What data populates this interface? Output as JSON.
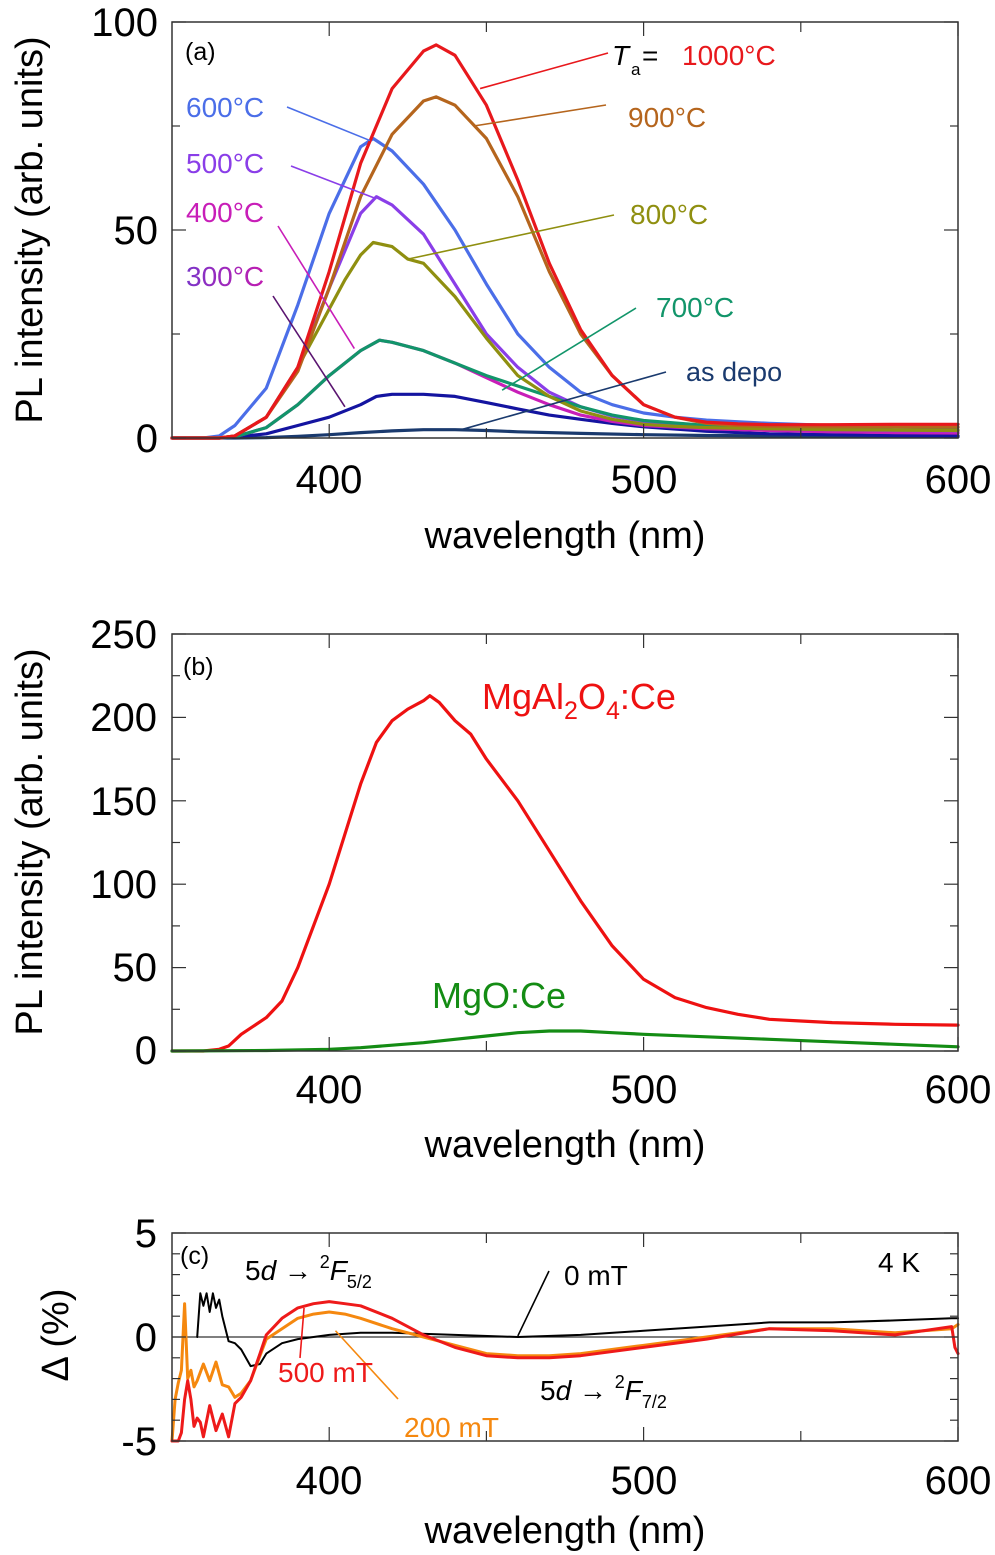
{
  "chart_data": [
    {
      "panel": "(a)",
      "type": "line",
      "xlabel": "wavelength (nm)",
      "ylabel": "PL intensity (arb. units)",
      "xlim": [
        350,
        600
      ],
      "ylim": [
        0,
        100
      ],
      "xticks": [
        400,
        500,
        600
      ],
      "yticks": [
        0,
        50,
        100
      ],
      "grid": false,
      "legend_title_prefix": "T",
      "legend_title_sub": "a",
      "legend_title_eq": " =",
      "series": [
        {
          "name": "1000°C",
          "color": "#e8181c",
          "x": [
            350,
            365,
            370,
            380,
            390,
            400,
            410,
            420,
            430,
            434,
            440,
            445,
            450,
            460,
            470,
            480,
            490,
            500,
            510,
            520,
            530,
            540,
            560,
            580,
            600
          ],
          "y": [
            0,
            0,
            0.5,
            5,
            17,
            40,
            66,
            84,
            93,
            94.5,
            92,
            86,
            80,
            62,
            42,
            26,
            15,
            8,
            5,
            3.8,
            3.4,
            3.2,
            3.2,
            3.3,
            3.3
          ]
        },
        {
          "name": "900°C",
          "color": "#b5651d",
          "x": [
            350,
            365,
            370,
            380,
            390,
            400,
            410,
            420,
            430,
            434,
            440,
            445,
            450,
            460,
            470,
            480,
            490,
            500,
            510,
            520,
            530,
            540,
            560,
            580,
            600
          ],
          "y": [
            0,
            0,
            0.5,
            5,
            16,
            36,
            58,
            73,
            81,
            82,
            80,
            76,
            72,
            58,
            40,
            25,
            15,
            8,
            5,
            3.5,
            3,
            2.8,
            2.7,
            2.7,
            2.6
          ]
        },
        {
          "name": "800°C",
          "color": "#8f8f10",
          "x": [
            350,
            365,
            370,
            380,
            390,
            400,
            405,
            410,
            414,
            420,
            425,
            430,
            440,
            450,
            460,
            470,
            480,
            490,
            500,
            510,
            520,
            540,
            560,
            580,
            600
          ],
          "y": [
            0,
            0,
            0.5,
            5,
            17,
            31,
            38,
            44,
            47,
            46,
            43,
            42,
            34,
            24,
            15,
            10,
            6.5,
            4.5,
            3.3,
            2.8,
            2.5,
            2.2,
            2,
            1.9,
            1.8
          ]
        },
        {
          "name": "700°C",
          "color": "#12956a",
          "x": [
            350,
            365,
            370,
            380,
            390,
            400,
            410,
            416,
            420,
            430,
            440,
            450,
            460,
            470,
            480,
            490,
            500,
            520,
            540,
            560,
            580,
            600
          ],
          "y": [
            0,
            0,
            0.3,
            2.5,
            8,
            15,
            21,
            23.5,
            23,
            21,
            18,
            15,
            12.5,
            10,
            7.5,
            5.5,
            4.2,
            3,
            2.5,
            2.2,
            2,
            1.9
          ]
        },
        {
          "name": "600°C",
          "color": "#4b6ee8",
          "x": [
            350,
            360,
            365,
            370,
            380,
            390,
            400,
            410,
            414,
            420,
            430,
            440,
            450,
            460,
            470,
            480,
            490,
            500,
            510,
            520,
            540,
            560,
            580,
            600
          ],
          "y": [
            0,
            0,
            0.5,
            3,
            12,
            32,
            54,
            70,
            72,
            69,
            61,
            50,
            37,
            25,
            17,
            11,
            8,
            6,
            5,
            4.3,
            3.5,
            3,
            2.8,
            2.6
          ]
        },
        {
          "name": "500°C",
          "color": "#8a3ee8",
          "x": [
            350,
            365,
            370,
            380,
            390,
            400,
            410,
            415,
            420,
            430,
            440,
            450,
            460,
            470,
            480,
            490,
            500,
            510,
            520,
            540,
            560,
            580,
            600
          ],
          "y": [
            0,
            0,
            0.5,
            5,
            17,
            36,
            54,
            58,
            56,
            49,
            37,
            25,
            17,
            11,
            7.5,
            5.3,
            4,
            3.3,
            2.8,
            2.3,
            2,
            1.8,
            1.7
          ]
        },
        {
          "name": "400°C",
          "color": "#c81eb8",
          "x": [
            350,
            365,
            370,
            380,
            390,
            400,
            410,
            416,
            420,
            430,
            440,
            450,
            460,
            470,
            480,
            490,
            500,
            520,
            540,
            560,
            580,
            600
          ],
          "y": [
            0,
            0,
            0.3,
            2.5,
            8,
            15,
            21,
            23.5,
            23,
            21,
            18,
            14.5,
            11,
            8,
            5.5,
            4,
            3,
            2.2,
            1.8,
            1.5,
            1.3,
            1.2
          ]
        },
        {
          "name": "300°C",
          "color": "#1414a0",
          "x": [
            350,
            365,
            370,
            380,
            390,
            400,
            410,
            415,
            420,
            430,
            440,
            450,
            460,
            470,
            480,
            490,
            500,
            520,
            540,
            560,
            580,
            600
          ],
          "y": [
            0,
            0,
            0.2,
            1,
            3,
            5,
            8,
            10,
            10.5,
            10.5,
            10,
            8.5,
            7,
            5.5,
            4.5,
            3.5,
            2.7,
            1.6,
            1,
            0.8,
            0.6,
            0.5
          ]
        },
        {
          "name": "as depo",
          "color": "#1a3a6e",
          "x": [
            350,
            370,
            380,
            390,
            400,
            410,
            420,
            430,
            440,
            450,
            460,
            480,
            500,
            520,
            540,
            560,
            580,
            600
          ],
          "y": [
            0,
            0,
            0.1,
            0.4,
            0.8,
            1.3,
            1.7,
            2,
            2,
            1.8,
            1.5,
            1.1,
            0.8,
            0.6,
            0.5,
            0.4,
            0.3,
            0.3
          ]
        }
      ],
      "annotations": [
        {
          "text": "600°C",
          "color": "#4b6ee8",
          "x": 350,
          "y": 78,
          "arrow_to": [
            413,
            71.5
          ]
        },
        {
          "text": "500°C",
          "color": "#8a3ee8",
          "x": 350,
          "y": 61,
          "arrow_to": [
            415,
            57.5
          ]
        },
        {
          "text": "400°C",
          "color": "#c81eb8",
          "x": 350,
          "y": 46,
          "arrow_to": [
            408,
            21.5
          ]
        },
        {
          "text": "300°C",
          "color": "#8a2cc0",
          "x": 350,
          "y": 28,
          "arrow_to": [
            405,
            7.5
          ]
        },
        {
          "text": "1000°C",
          "color": "#e8181c",
          "x": 485,
          "y": 94,
          "arrow_to": [
            448,
            84
          ]
        },
        {
          "text": "900°C",
          "color": "#b5651d",
          "x": 488,
          "y": 77,
          "arrow_to": [
            446,
            75
          ]
        },
        {
          "text": "800°C",
          "color": "#8f8f10",
          "x": 490,
          "y": 54,
          "arrow_to": [
            425,
            43
          ]
        },
        {
          "text": "700°C",
          "color": "#12956a",
          "x": 495,
          "y": 25,
          "arrow_to": [
            455,
            11.5
          ]
        },
        {
          "text": "as depo",
          "color": "#1a3a6e",
          "x": 508,
          "y": 15.5,
          "arrow_to": [
            442,
            2
          ]
        }
      ]
    },
    {
      "panel": "(b)",
      "type": "line",
      "xlabel": "wavelength (nm)",
      "ylabel": "PL intensity (arb. units)",
      "xlim": [
        350,
        600
      ],
      "ylim": [
        0,
        250
      ],
      "xticks": [
        400,
        500,
        600
      ],
      "yticks": [
        0,
        50,
        100,
        150,
        200,
        250
      ],
      "grid": false,
      "series": [
        {
          "name": "MgAl2O4:Ce",
          "color": "#ee1111",
          "x": [
            350,
            360,
            365,
            368,
            372,
            380,
            385,
            390,
            395,
            400,
            405,
            410,
            415,
            420,
            425,
            430,
            432,
            435,
            440,
            445,
            450,
            460,
            470,
            480,
            490,
            500,
            510,
            520,
            530,
            540,
            550,
            560,
            580,
            600
          ],
          "y": [
            0,
            0,
            1,
            3,
            10,
            20,
            30,
            50,
            75,
            100,
            130,
            160,
            185,
            198,
            205,
            210,
            213,
            209,
            198,
            190,
            175,
            150,
            120,
            90,
            63,
            43,
            32,
            26,
            22,
            19,
            18,
            17,
            16,
            15.5
          ]
        },
        {
          "name": "MgO:Ce",
          "color": "#148c14",
          "x": [
            350,
            380,
            400,
            410,
            420,
            430,
            440,
            450,
            460,
            470,
            480,
            490,
            500,
            520,
            540,
            560,
            580,
            600
          ],
          "y": [
            0,
            0.3,
            1,
            2,
            3.5,
            5,
            7,
            9,
            11,
            12,
            12,
            11,
            10,
            8.5,
            7,
            5.5,
            4,
            2.5
          ]
        }
      ],
      "annotations": [
        {
          "text_main": "MgAl",
          "sub1": "2",
          "text_mid": "O",
          "sub2": "4",
          "text_end": ":Ce",
          "color": "#ee1111"
        },
        {
          "text": "MgO:Ce",
          "color": "#148c14"
        }
      ]
    },
    {
      "panel": "(c)",
      "type": "line",
      "xlabel": "wavelength (nm)",
      "ylabel": "Δ (%)",
      "xlim": [
        350,
        600
      ],
      "ylim": [
        -5,
        5
      ],
      "xticks": [
        400,
        500,
        600
      ],
      "yticks": [
        -5,
        0,
        5
      ],
      "grid": false,
      "zero_line": true,
      "series": [
        {
          "name": "0 mT",
          "color": "#000000",
          "x": [
            358,
            359,
            360,
            361,
            362,
            363,
            364,
            365,
            366,
            368,
            370,
            372,
            375,
            378,
            380,
            385,
            390,
            395,
            400,
            410,
            420,
            440,
            460,
            480,
            500,
            520,
            540,
            560,
            580,
            598,
            600
          ],
          "y": [
            0,
            2.1,
            1.5,
            2.1,
            1.2,
            2.1,
            1.4,
            1.8,
            1,
            -0.2,
            -0.3,
            -0.6,
            -1.4,
            -1.3,
            -0.8,
            -0.3,
            -0.1,
            0,
            0.1,
            0.2,
            0.2,
            0.1,
            0.0,
            0.1,
            0.3,
            0.5,
            0.7,
            0.7,
            0.8,
            0.9,
            0.9
          ]
        },
        {
          "name": "200 mT",
          "color": "#f5880f",
          "x": [
            350,
            351,
            352,
            353,
            354,
            355,
            356,
            357,
            358,
            360,
            362,
            364,
            366,
            368,
            370,
            372,
            375,
            378,
            380,
            385,
            390,
            395,
            400,
            405,
            410,
            420,
            430,
            440,
            450,
            460,
            470,
            480,
            500,
            520,
            540,
            560,
            580,
            598,
            600
          ],
          "y": [
            -5,
            -3,
            -2.2,
            -1.6,
            1.6,
            -2,
            -1.6,
            -2.4,
            -2.1,
            -1.3,
            -2.1,
            -1.2,
            -2.3,
            -2.4,
            -2.9,
            -2.7,
            -2.1,
            -0.9,
            -0.1,
            0.4,
            0.9,
            1.1,
            1.2,
            1.1,
            0.9,
            0.4,
            0.0,
            -0.4,
            -0.8,
            -0.9,
            -0.9,
            -0.8,
            -0.4,
            0.0,
            0.4,
            0.4,
            0.2,
            0.4,
            0.6
          ]
        },
        {
          "name": "500 mT",
          "color": "#ee1a1a",
          "x": [
            350,
            352,
            353,
            354,
            355,
            356,
            357,
            358,
            359,
            360,
            362,
            364,
            366,
            368,
            370,
            372,
            375,
            378,
            380,
            385,
            390,
            395,
            400,
            405,
            410,
            420,
            430,
            440,
            450,
            460,
            470,
            480,
            500,
            520,
            540,
            560,
            580,
            598,
            599,
            600
          ],
          "y": [
            -5,
            -5,
            -4.6,
            -3,
            -2.1,
            -3,
            -4.3,
            -3.9,
            -4.1,
            -4.8,
            -3.3,
            -4.5,
            -3.7,
            -4.8,
            -3.2,
            -2.9,
            -2.1,
            -0.8,
            0.1,
            0.9,
            1.4,
            1.6,
            1.7,
            1.6,
            1.5,
            0.9,
            0.1,
            -0.5,
            -0.9,
            -1.0,
            -1.0,
            -0.9,
            -0.5,
            -0.1,
            0.4,
            0.3,
            0.1,
            0.5,
            -0.5,
            -0.8
          ]
        }
      ],
      "annotations": [
        {
          "text_pre": "5",
          "italic": "d",
          "arrow": " → ",
          "sup": "2",
          "italic2": "F",
          "sub": "5/2",
          "color": "#000000"
        },
        {
          "text_pre": "5",
          "italic": "d",
          "arrow": " → ",
          "sup": "2",
          "italic2": "F",
          "sub": "7/2",
          "color": "#000000"
        },
        {
          "text": "0 mT",
          "color": "#000000",
          "arrow_to": [
            460,
            0.05
          ]
        },
        {
          "text": "500 mT",
          "color": "#ee1a1a",
          "arrow_to": [
            392,
            1.4
          ]
        },
        {
          "text": "200 mT",
          "color": "#f5880f",
          "arrow_to": [
            402,
            0.3
          ]
        },
        {
          "text": "4 K",
          "color": "#000000"
        }
      ]
    }
  ]
}
